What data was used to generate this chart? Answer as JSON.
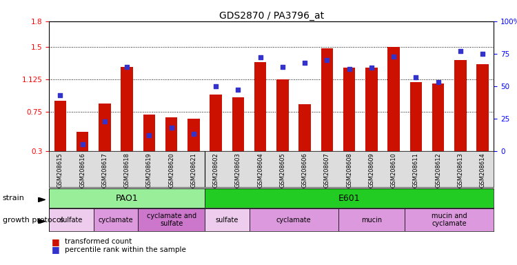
{
  "title": "GDS2870 / PA3796_at",
  "samples": [
    "GSM208615",
    "GSM208616",
    "GSM208617",
    "GSM208618",
    "GSM208619",
    "GSM208620",
    "GSM208621",
    "GSM208602",
    "GSM208603",
    "GSM208604",
    "GSM208605",
    "GSM208606",
    "GSM208607",
    "GSM208608",
    "GSM208609",
    "GSM208610",
    "GSM208611",
    "GSM208612",
    "GSM208613",
    "GSM208614"
  ],
  "red_values": [
    0.88,
    0.52,
    0.85,
    1.27,
    0.72,
    0.69,
    0.67,
    0.95,
    0.92,
    1.33,
    1.13,
    0.84,
    1.49,
    1.26,
    1.26,
    1.5,
    1.1,
    1.08,
    1.35,
    1.3
  ],
  "blue_percentile": [
    43,
    5,
    23,
    65,
    12,
    18,
    13,
    50,
    47,
    72,
    65,
    68,
    70,
    63,
    64,
    73,
    57,
    53,
    77,
    75
  ],
  "ylim_left": [
    0.3,
    1.8
  ],
  "ylim_right": [
    0,
    100
  ],
  "yticks_left": [
    0.3,
    0.75,
    1.125,
    1.5,
    1.8
  ],
  "ytick_labels_left": [
    "0.3",
    "0.75",
    "1.125",
    "1.5",
    "1.8"
  ],
  "yticks_right": [
    0,
    25,
    50,
    75,
    100
  ],
  "ytick_labels_right": [
    "0",
    "25",
    "50",
    "75",
    "100%"
  ],
  "hlines": [
    0.75,
    1.125,
    1.5
  ],
  "strain_groups": [
    {
      "label": "PAO1",
      "start": 0,
      "end": 6,
      "color": "#99EE99"
    },
    {
      "label": "E601",
      "start": 7,
      "end": 19,
      "color": "#22CC22"
    }
  ],
  "protocol_groups": [
    {
      "label": "sulfate",
      "start": 0,
      "end": 1,
      "color": "#EECCEE"
    },
    {
      "label": "cyclamate",
      "start": 2,
      "end": 3,
      "color": "#DD99DD"
    },
    {
      "label": "cyclamate and\nsulfate",
      "start": 4,
      "end": 6,
      "color": "#CC77CC"
    },
    {
      "label": "sulfate",
      "start": 7,
      "end": 8,
      "color": "#EECCEE"
    },
    {
      "label": "cyclamate",
      "start": 9,
      "end": 12,
      "color": "#DD99DD"
    },
    {
      "label": "mucin",
      "start": 13,
      "end": 15,
      "color": "#DD99DD"
    },
    {
      "label": "mucin and\ncyclamate",
      "start": 16,
      "end": 19,
      "color": "#DD99DD"
    }
  ],
  "bar_color": "#CC1100",
  "dot_color": "#3333CC",
  "bg_color": "#DDDDDD",
  "legend_items": [
    "transformed count",
    "percentile rank within the sample"
  ]
}
